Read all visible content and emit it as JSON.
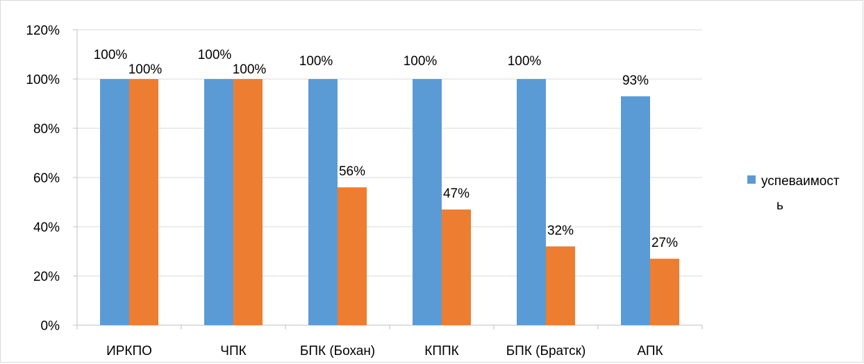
{
  "chart_data": {
    "type": "bar",
    "categories": [
      "ИРКПО",
      "ЧПК",
      "БПК (Бохан)",
      "КППК",
      "БПК (Братск)",
      "АПК"
    ],
    "series": [
      {
        "name": "успеваимость",
        "color": "#5b9bd5",
        "values": [
          100,
          100,
          100,
          100,
          100,
          93
        ],
        "labels": [
          "100%",
          "100%",
          "100%",
          "100%",
          "100%",
          "93%"
        ]
      },
      {
        "color": "#ed7d31",
        "values": [
          100,
          100,
          56,
          47,
          32,
          27
        ],
        "labels": [
          "100%",
          "100%",
          "56%",
          "47%",
          "32%",
          "27%"
        ]
      }
    ],
    "y_ticks": [
      "0%",
      "20%",
      "40%",
      "60%",
      "80%",
      "100%",
      "120%"
    ],
    "ylim": [
      0,
      120
    ],
    "grid": true,
    "legend": {
      "position": "right",
      "lines": [
        "успеваимост",
        "ь"
      ]
    }
  }
}
